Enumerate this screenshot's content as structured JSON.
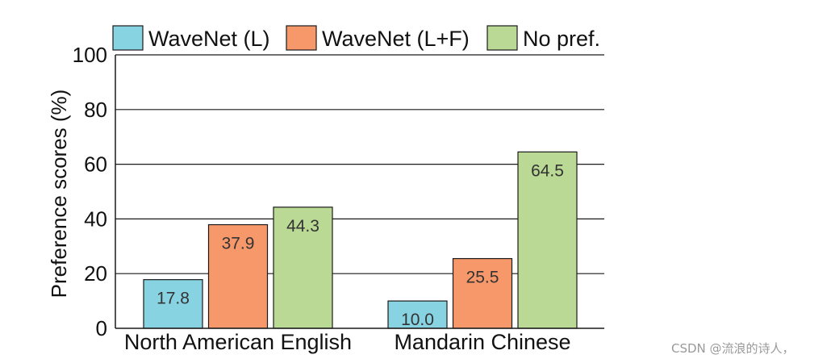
{
  "chart_data": {
    "type": "bar",
    "categories": [
      "North American English",
      "Mandarin Chinese"
    ],
    "series": [
      {
        "name": "WaveNet (L)",
        "color": "#88d3e2",
        "values": [
          17.8,
          10.0
        ]
      },
      {
        "name": "WaveNet (L+F)",
        "color": "#f7986b",
        "values": [
          37.9,
          25.5
        ]
      },
      {
        "name": "No pref.",
        "color": "#b9d994",
        "values": [
          44.3,
          64.5
        ]
      }
    ],
    "data_labels": [
      [
        "17.8",
        "10.0"
      ],
      [
        "37.9",
        "25.5"
      ],
      [
        "44.3",
        "64.5"
      ]
    ],
    "ylabel": "Preference scores (%)",
    "xlabel": "",
    "ylim": [
      0,
      100
    ],
    "yticks": [
      0,
      20,
      40,
      60,
      80,
      100
    ],
    "grid": true,
    "legend_position": "top"
  },
  "watermark": "CSDN @流浪的诗人，"
}
